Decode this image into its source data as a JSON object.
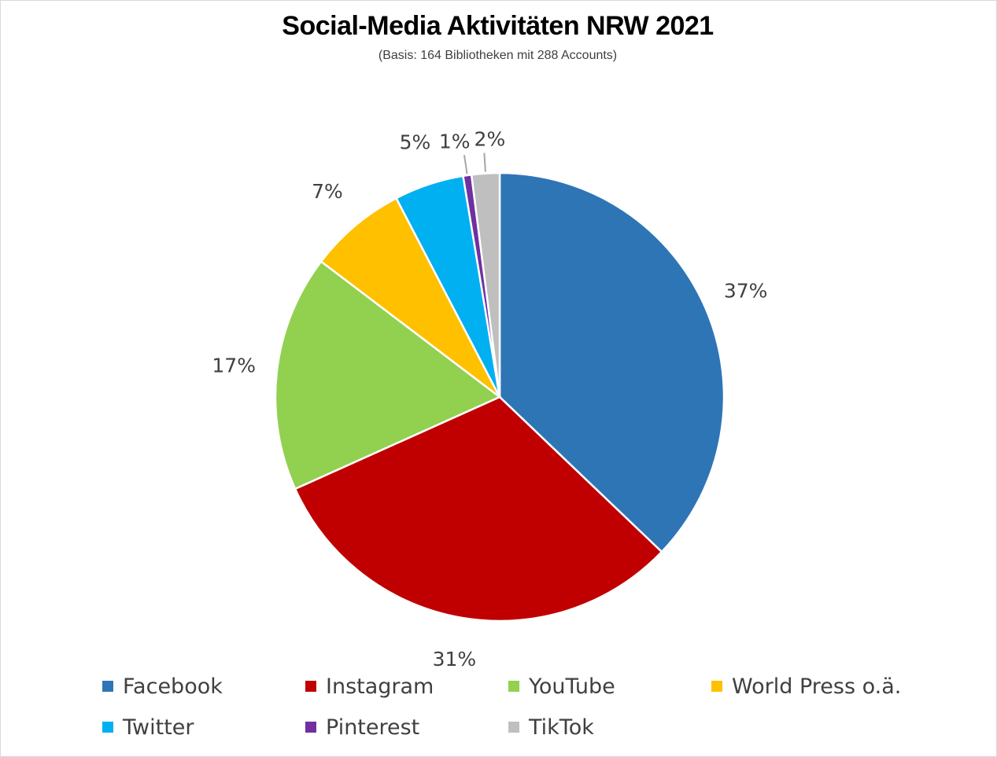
{
  "chart_data": {
    "type": "pie",
    "title": "Social-Media Aktivitäten NRW 2021",
    "subtitle": "(Basis: 164 Bibliotheken mit 288 Accounts)",
    "legend_position": "bottom",
    "slices": [
      {
        "label": "Facebook",
        "value": 37,
        "display": "37%",
        "color": "#2e75b6"
      },
      {
        "label": "Instagram",
        "value": 31,
        "display": "31%",
        "color": "#c00000"
      },
      {
        "label": "YouTube",
        "value": 17,
        "display": "17%",
        "color": "#92d050"
      },
      {
        "label": "World Press o.ä.",
        "value": 7,
        "display": "7%",
        "color": "#ffc000"
      },
      {
        "label": "Twitter",
        "value": 5,
        "display": "5%",
        "color": "#00b0f0"
      },
      {
        "label": "Pinterest",
        "value": 0.6,
        "display": "1%",
        "color": "#7030a0"
      },
      {
        "label": "TikTok",
        "value": 2,
        "display": "2%",
        "color": "#bfbfbf"
      }
    ]
  }
}
